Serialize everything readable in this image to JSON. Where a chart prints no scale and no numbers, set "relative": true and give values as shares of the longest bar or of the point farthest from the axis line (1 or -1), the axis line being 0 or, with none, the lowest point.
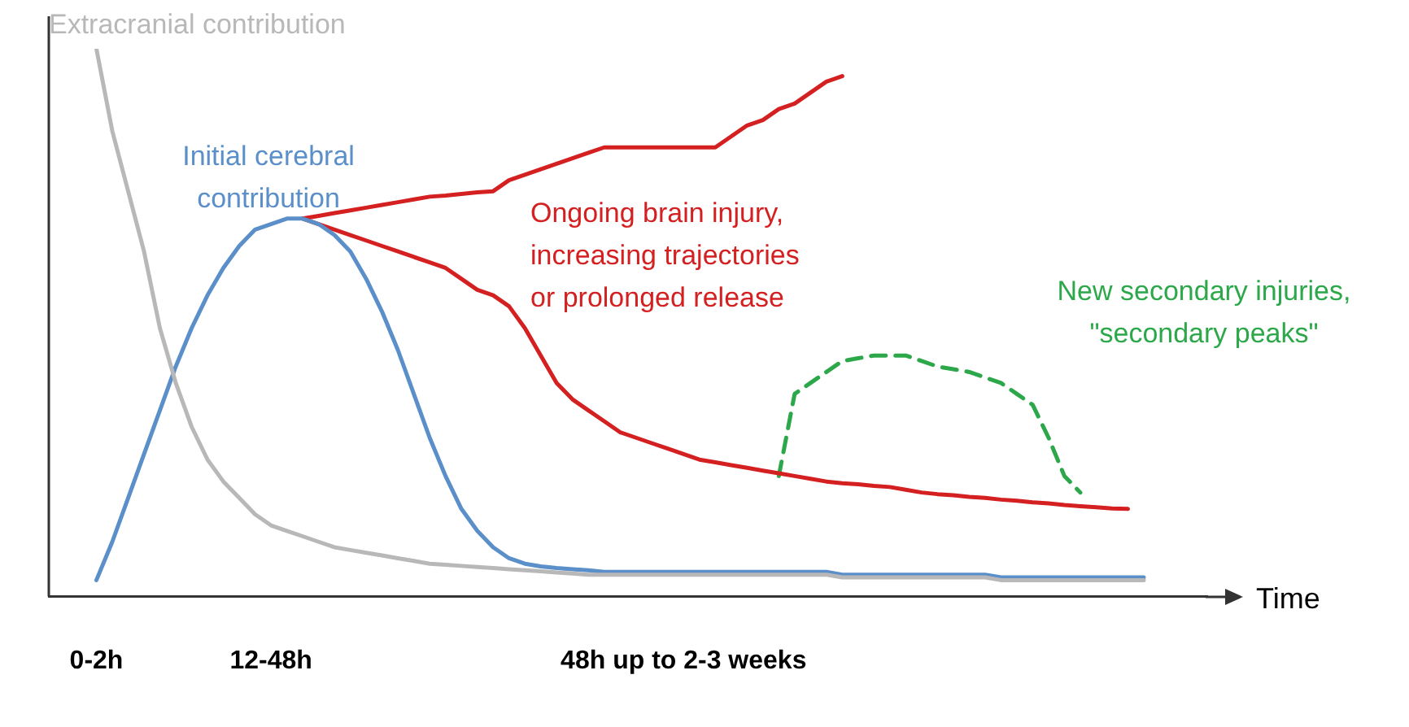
{
  "chart_data": {
    "type": "line",
    "relative": true,
    "xlabel": "Time",
    "categories": [
      null,
      null,
      null,
      "0-2h",
      null,
      null,
      null,
      null,
      null,
      null,
      null,
      null,
      null,
      null,
      "12-48h",
      null,
      null,
      null,
      null,
      null,
      null,
      null,
      null,
      null,
      null,
      null,
      null,
      null,
      null,
      null,
      null,
      null,
      null,
      null,
      null,
      null,
      null,
      null,
      null,
      null,
      "48h up to 2-3 weeks",
      null,
      null,
      null,
      null,
      null,
      null,
      null,
      null,
      null,
      null,
      null,
      null,
      null,
      null,
      null,
      null,
      null,
      null,
      null,
      null,
      null,
      null,
      null,
      null,
      null,
      null,
      null,
      null,
      null,
      null,
      null,
      null,
      null
    ],
    "series": [
      {
        "name": "Extracranial contribution",
        "color": "#b8b8b8",
        "values": [
          null,
          null,
          null,
          1.0,
          0.85,
          0.74,
          0.63,
          0.49,
          0.39,
          0.31,
          0.25,
          0.21,
          0.18,
          0.15,
          0.13,
          0.12,
          0.11,
          0.1,
          0.09,
          0.085,
          0.08,
          0.075,
          0.07,
          0.065,
          0.06,
          0.058,
          0.056,
          0.054,
          0.052,
          0.05,
          0.048,
          0.046,
          0.044,
          0.042,
          0.04,
          0.04,
          0.04,
          0.04,
          0.04,
          0.04,
          0.04,
          0.04,
          0.04,
          0.04,
          0.04,
          0.04,
          0.04,
          0.04,
          0.04,
          0.04,
          0.035,
          0.035,
          0.035,
          0.035,
          0.035,
          0.035,
          0.035,
          0.035,
          0.035,
          0.035,
          0.03,
          0.03,
          0.03,
          0.03,
          0.03,
          0.03,
          0.03,
          0.03,
          0.03,
          0.03,
          null,
          null,
          null,
          null
        ]
      },
      {
        "name": "Initial cerebral contribution",
        "color": "#5b8fc9",
        "values": [
          null,
          null,
          null,
          0.03,
          0.1,
          0.18,
          0.26,
          0.34,
          0.42,
          0.49,
          0.55,
          0.6,
          0.64,
          0.67,
          0.68,
          0.69,
          0.69,
          0.68,
          0.66,
          0.63,
          0.58,
          0.52,
          0.45,
          0.37,
          0.29,
          0.22,
          0.16,
          0.12,
          0.09,
          0.07,
          0.06,
          0.055,
          0.052,
          0.05,
          0.048,
          0.045,
          0.045,
          0.045,
          0.045,
          0.045,
          0.045,
          0.045,
          0.045,
          0.045,
          0.045,
          0.045,
          0.045,
          0.045,
          0.045,
          0.045,
          0.04,
          0.04,
          0.04,
          0.04,
          0.04,
          0.04,
          0.04,
          0.04,
          0.04,
          0.04,
          0.035,
          0.035,
          0.035,
          0.035,
          0.035,
          0.035,
          0.035,
          0.035,
          0.035,
          0.035,
          null,
          null,
          null,
          null
        ]
      },
      {
        "name": "Ongoing brain injury, increasing trajectories or prolonged release",
        "color": "#d42020",
        "values": [
          null,
          null,
          null,
          null,
          null,
          null,
          null,
          null,
          null,
          null,
          null,
          null,
          null,
          null,
          null,
          null,
          0.69,
          0.695,
          0.7,
          0.705,
          0.71,
          0.715,
          0.72,
          0.725,
          0.73,
          0.732,
          0.735,
          0.738,
          0.74,
          0.76,
          0.77,
          0.78,
          0.79,
          0.8,
          0.81,
          0.82,
          0.82,
          0.82,
          0.82,
          0.82,
          0.82,
          0.82,
          0.82,
          0.84,
          0.86,
          0.87,
          0.89,
          0.9,
          0.92,
          0.94,
          0.95,
          null,
          null,
          null,
          null,
          null,
          null,
          null,
          null,
          null,
          null,
          null,
          null,
          null,
          null,
          null,
          null,
          null,
          null,
          null,
          null,
          null,
          null,
          null
        ]
      },
      {
        "color": "#d42020",
        "values": [
          null,
          null,
          null,
          null,
          null,
          null,
          null,
          null,
          null,
          null,
          null,
          null,
          null,
          null,
          null,
          null,
          0.69,
          0.68,
          0.67,
          0.66,
          0.65,
          0.64,
          0.63,
          0.62,
          0.61,
          0.6,
          0.58,
          0.56,
          0.55,
          0.53,
          0.49,
          0.44,
          0.39,
          0.36,
          0.34,
          0.32,
          0.3,
          0.29,
          0.28,
          0.27,
          0.26,
          0.25,
          0.245,
          0.24,
          0.235,
          0.23,
          0.225,
          0.22,
          0.215,
          0.21,
          0.207,
          0.205,
          0.202,
          0.2,
          0.195,
          0.19,
          0.187,
          0.185,
          0.182,
          0.18,
          0.177,
          0.175,
          0.172,
          0.17,
          0.167,
          0.165,
          0.163,
          0.161,
          0.16,
          null,
          null,
          null,
          null,
          null
        ]
      },
      {
        "name": "New secondary injuries, \"secondary peaks\"",
        "color": "#2ca84a",
        "line_style": "dashed",
        "values": [
          null,
          null,
          null,
          null,
          null,
          null,
          null,
          null,
          null,
          null,
          null,
          null,
          null,
          null,
          null,
          null,
          null,
          null,
          null,
          null,
          null,
          null,
          null,
          null,
          null,
          null,
          null,
          null,
          null,
          null,
          null,
          null,
          null,
          null,
          null,
          null,
          null,
          null,
          null,
          null,
          null,
          null,
          null,
          null,
          null,
          null,
          0.22,
          0.37,
          0.39,
          0.41,
          0.43,
          0.435,
          0.44,
          0.44,
          0.44,
          0.43,
          0.42,
          0.415,
          0.41,
          0.4,
          0.39,
          0.37,
          0.35,
          0.29,
          0.22,
          0.19,
          null,
          null,
          null,
          null,
          null,
          null,
          null,
          null
        ]
      }
    ]
  }
}
